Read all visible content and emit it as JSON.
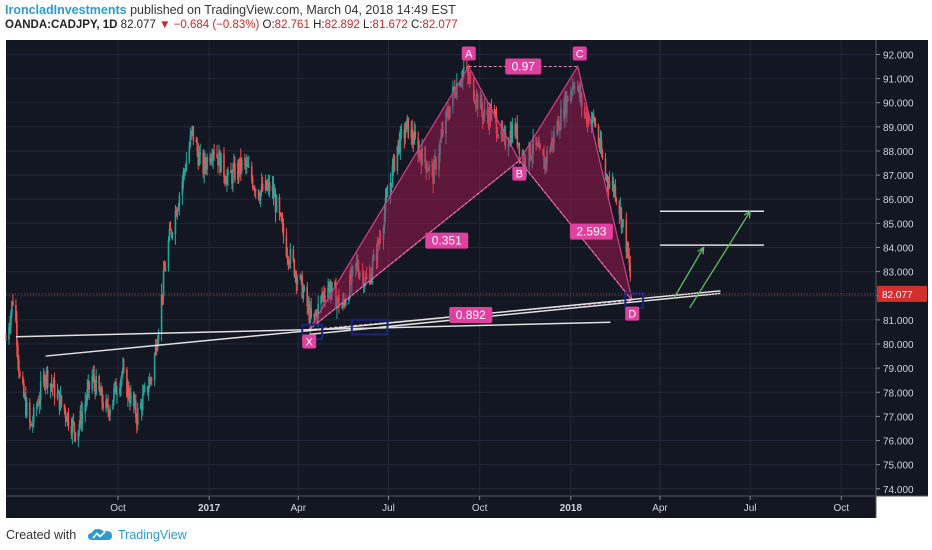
{
  "header": {
    "author": "IroncladInvestments",
    "published": "published on TradingView.com, March 04, 2018 14:49 EST",
    "symbol": "OANDA:CADJPY, 1D",
    "last": "82.077",
    "arrow": "▼",
    "change": "−0.684 (−0.83%)",
    "o_label": "O:",
    "o": "82.761",
    "h_label": "H:",
    "h": "82.892",
    "l_label": "L:",
    "l": "81.672",
    "c_label": "C:",
    "c": "82.077"
  },
  "footer": {
    "created": "Created with",
    "brand": "TradingView"
  },
  "colors": {
    "background": "#131722",
    "candle_up": "#26a69a",
    "candle_down": "#ef5350",
    "pattern_fill": "#c2185b",
    "pattern_label": "#e040a0",
    "trendline": "#e0e0e0",
    "arrow": "#66bb6a",
    "price_tag": "#d32f2f",
    "box": "#1a237e"
  },
  "chart_data": {
    "type": "candlestick",
    "symbol": "OANDA:CADJPY",
    "interval": "1D",
    "ylim": [
      73.7,
      92.6
    ],
    "y_ticks": [
      74,
      75,
      76,
      77,
      78,
      79,
      80,
      81,
      82,
      83,
      84,
      85,
      86,
      87,
      88,
      89,
      90,
      91,
      92
    ],
    "y_tick_labels": [
      "74.000",
      "75.000",
      "76.000",
      "77.000",
      "78.000",
      "79.000",
      "80.000",
      "81.000",
      "82.000",
      "83.000",
      "84.000",
      "85.000",
      "86.000",
      "87.000",
      "88.000",
      "89.000",
      "90.000",
      "91.000",
      "92.000"
    ],
    "x_ticks": [
      {
        "label": "Oct",
        "date": "2016-10-01"
      },
      {
        "label": "2017",
        "date": "2017-01-01"
      },
      {
        "label": "Apr",
        "date": "2017-04-01"
      },
      {
        "label": "Jul",
        "date": "2017-07-01"
      },
      {
        "label": "Oct",
        "date": "2017-10-01"
      },
      {
        "label": "2018",
        "date": "2018-01-01"
      },
      {
        "label": "Apr",
        "date": "2018-04-01"
      },
      {
        "label": "Jul",
        "date": "2018-07-01"
      },
      {
        "label": "Oct",
        "date": "2018-10-01"
      }
    ],
    "x_range": [
      "2016-06-10",
      "2018-11-05"
    ],
    "last_price": 82.077,
    "last_price_label": "82.077",
    "price_path": [
      [
        "2016-06-10",
        80.2
      ],
      [
        "2016-06-18",
        82.1
      ],
      [
        "2016-06-24",
        78.5
      ],
      [
        "2016-07-05",
        76.5
      ],
      [
        "2016-07-20",
        78.8
      ],
      [
        "2016-08-05",
        77.5
      ],
      [
        "2016-08-20",
        76.3
      ],
      [
        "2016-09-05",
        78.6
      ],
      [
        "2016-09-20",
        77.2
      ],
      [
        "2016-10-05",
        78.8
      ],
      [
        "2016-10-20",
        77.0
      ],
      [
        "2016-11-05",
        78.8
      ],
      [
        "2016-11-20",
        84.0
      ],
      [
        "2016-12-05",
        86.8
      ],
      [
        "2016-12-15",
        88.8
      ],
      [
        "2016-12-25",
        87.2
      ],
      [
        "2017-01-05",
        88.2
      ],
      [
        "2017-01-20",
        86.8
      ],
      [
        "2017-02-05",
        87.5
      ],
      [
        "2017-02-20",
        86.3
      ],
      [
        "2017-03-05",
        86.5
      ],
      [
        "2017-03-20",
        84.0
      ],
      [
        "2017-04-05",
        82.3
      ],
      [
        "2017-04-15",
        80.8
      ],
      [
        "2017-04-30",
        82.5
      ],
      [
        "2017-05-15",
        81.5
      ],
      [
        "2017-05-30",
        83.3
      ],
      [
        "2017-06-10",
        82.5
      ],
      [
        "2017-06-20",
        84.0
      ],
      [
        "2017-07-01",
        86.3
      ],
      [
        "2017-07-10",
        88.2
      ],
      [
        "2017-07-20",
        89.0
      ],
      [
        "2017-08-01",
        88.0
      ],
      [
        "2017-08-15",
        87.0
      ],
      [
        "2017-08-25",
        88.8
      ],
      [
        "2017-09-05",
        90.5
      ],
      [
        "2017-09-15",
        91.4
      ],
      [
        "2017-09-25",
        90.5
      ],
      [
        "2017-10-05",
        89.5
      ],
      [
        "2017-10-15",
        89.5
      ],
      [
        "2017-10-25",
        88.3
      ],
      [
        "2017-11-05",
        89.0
      ],
      [
        "2017-11-15",
        87.6
      ],
      [
        "2017-11-25",
        88.2
      ],
      [
        "2017-12-05",
        87.5
      ],
      [
        "2017-12-15",
        88.6
      ],
      [
        "2017-12-25",
        89.8
      ],
      [
        "2018-01-05",
        91.0
      ],
      [
        "2018-01-15",
        89.5
      ],
      [
        "2018-01-25",
        89.2
      ],
      [
        "2018-02-05",
        87.0
      ],
      [
        "2018-02-15",
        86.4
      ],
      [
        "2018-02-25",
        84.5
      ],
      [
        "2018-03-04",
        82.1
      ]
    ],
    "harmonic_pattern": {
      "points": [
        {
          "label": "X",
          "date": "2017-04-12",
          "price": 80.6
        },
        {
          "label": "A",
          "date": "2017-09-20",
          "price": 91.5
        },
        {
          "label": "B",
          "date": "2017-11-10",
          "price": 87.6
        },
        {
          "label": "C",
          "date": "2018-01-08",
          "price": 91.5
        },
        {
          "label": "D",
          "date": "2018-03-04",
          "price": 81.8
        }
      ],
      "ratios": [
        {
          "label": "0.351",
          "from": "X",
          "to": "B"
        },
        {
          "label": "0.97",
          "from": "A",
          "to": "C"
        },
        {
          "label": "2.593",
          "from": "B",
          "to": "D"
        },
        {
          "label": "0.892",
          "from": "X",
          "to": "D"
        }
      ]
    },
    "trendlines": [
      {
        "from": [
          "2016-06-20",
          80.3
        ],
        "to": [
          "2018-02-10",
          80.9
        ]
      },
      {
        "from": [
          "2016-07-20",
          79.5
        ],
        "to": [
          "2018-06-01",
          82.2
        ]
      },
      {
        "from": [
          "2017-04-12",
          80.4
        ],
        "to": [
          "2018-06-01",
          82.1
        ]
      }
    ],
    "target_lines": [
      {
        "from": "2018-04-01",
        "to": "2018-07-15",
        "price": 85.5
      },
      {
        "from": "2018-04-01",
        "to": "2018-07-15",
        "price": 84.1
      }
    ],
    "arrows": [
      {
        "from": [
          "2018-04-15",
          81.9
        ],
        "to": [
          "2018-05-15",
          84.0
        ]
      },
      {
        "from": [
          "2018-05-01",
          81.5
        ],
        "to": [
          "2018-07-01",
          85.5
        ]
      }
    ],
    "boxes": [
      {
        "from": [
          "2017-04-05",
          80.2
        ],
        "to": [
          "2017-04-25",
          80.8
        ]
      },
      {
        "from": [
          "2017-05-25",
          80.4
        ],
        "to": [
          "2017-06-30",
          81.0
        ]
      },
      {
        "from": [
          "2018-02-25",
          81.5
        ],
        "to": [
          "2018-03-15",
          82.1
        ]
      }
    ]
  }
}
